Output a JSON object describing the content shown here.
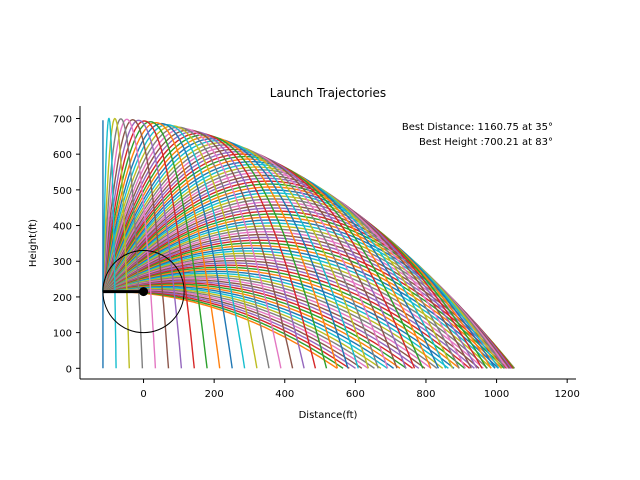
{
  "chart_data": {
    "type": "line",
    "title": "Launch Trajectories",
    "xlabel": "Distance(ft)",
    "ylabel": "Height(ft)",
    "xlim": [
      -180,
      1225
    ],
    "ylim": [
      -30,
      735
    ],
    "x_ticks": [
      0,
      200,
      400,
      600,
      800,
      1000,
      1200
    ],
    "y_ticks": [
      0,
      100,
      200,
      300,
      400,
      500,
      600,
      700
    ],
    "grid": false,
    "legend": "none",
    "annotations": [
      "Best Distance: 1160.75 at 35°",
      "Best Height :700.21 at 83°"
    ],
    "launch_point": {
      "x": -115,
      "y": 215
    },
    "arm_pivot": {
      "x": 0,
      "y": 215
    },
    "arm_circle": {
      "center_x": 0,
      "center_y": 215,
      "radius": 115
    },
    "launch_angles_deg": {
      "start": 0,
      "end": 90,
      "step": 1
    },
    "best_distance": {
      "value": 1160.75,
      "angle_deg": 35
    },
    "best_height": {
      "value": 700.21,
      "angle_deg": 83
    },
    "series_colors": [
      "#1f77b4",
      "#ff7f0e",
      "#2ca02c",
      "#d62728",
      "#9467bd",
      "#8c564b",
      "#e377c2",
      "#7f7f7f",
      "#bcbd22",
      "#17becf"
    ]
  }
}
